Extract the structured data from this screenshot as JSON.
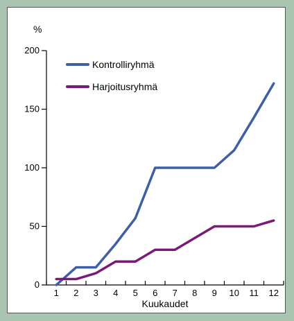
{
  "chart_data": {
    "type": "line",
    "x": [
      1,
      2,
      3,
      4,
      5,
      6,
      7,
      8,
      9,
      10,
      11,
      12
    ],
    "series": [
      {
        "name": "Kontrolliryhmä",
        "color": "#3c5fa8",
        "values": [
          0,
          15,
          15,
          35,
          57,
          100,
          100,
          100,
          100,
          115,
          143,
          172
        ]
      },
      {
        "name": "Harjoitusryhmä",
        "color": "#7a1a78",
        "values": [
          5,
          5,
          10,
          20,
          20,
          30,
          30,
          40,
          50,
          50,
          50,
          55
        ]
      }
    ],
    "xlabel": "Kuukaudet",
    "ylabel": "%",
    "xticks": [
      "1",
      "2",
      "3",
      "4",
      "5",
      "6",
      "7",
      "8",
      "9",
      "10",
      "11",
      "12"
    ],
    "yticks": [
      "0",
      "50",
      "100",
      "150",
      "200"
    ],
    "ylim": [
      0,
      200
    ],
    "xlim": [
      0.5,
      12.5
    ],
    "grid": false,
    "legend": "top-left"
  },
  "colors": {
    "background": "#a9c4b0",
    "frame": "#ffffff"
  }
}
